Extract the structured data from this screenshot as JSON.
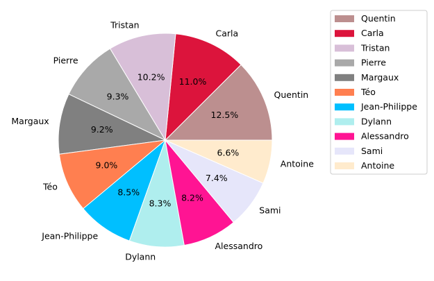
{
  "chart_data": {
    "type": "pie",
    "title": "",
    "legend_position": "top-right",
    "slices": [
      {
        "label": "Quentin",
        "value": 12.5,
        "pct_label": "12.5%",
        "color": "#bc8f8f"
      },
      {
        "label": "Carla",
        "value": 11.0,
        "pct_label": "11.0%",
        "color": "#dc143c"
      },
      {
        "label": "Tristan",
        "value": 10.2,
        "pct_label": "10.2%",
        "color": "#d8bfd8"
      },
      {
        "label": "Pierre",
        "value": 9.3,
        "pct_label": "9.3%",
        "color": "#a9a9a9"
      },
      {
        "label": "Margaux",
        "value": 9.2,
        "pct_label": "9.2%",
        "color": "#808080"
      },
      {
        "label": "Téo",
        "value": 9.0,
        "pct_label": "9.0%",
        "color": "#ff7f50"
      },
      {
        "label": "Jean-Philippe",
        "value": 8.5,
        "pct_label": "8.5%",
        "color": "#00bfff"
      },
      {
        "label": "Dylann",
        "value": 8.3,
        "pct_label": "8.3%",
        "color": "#afeeee"
      },
      {
        "label": "Alessandro",
        "value": 8.2,
        "pct_label": "8.2%",
        "color": "#ff1493"
      },
      {
        "label": "Sami",
        "value": 7.4,
        "pct_label": "7.4%",
        "color": "#e6e6fa"
      },
      {
        "label": "Antoine",
        "value": 6.6,
        "pct_label": "6.6%",
        "color": "#ffebcd"
      }
    ]
  }
}
